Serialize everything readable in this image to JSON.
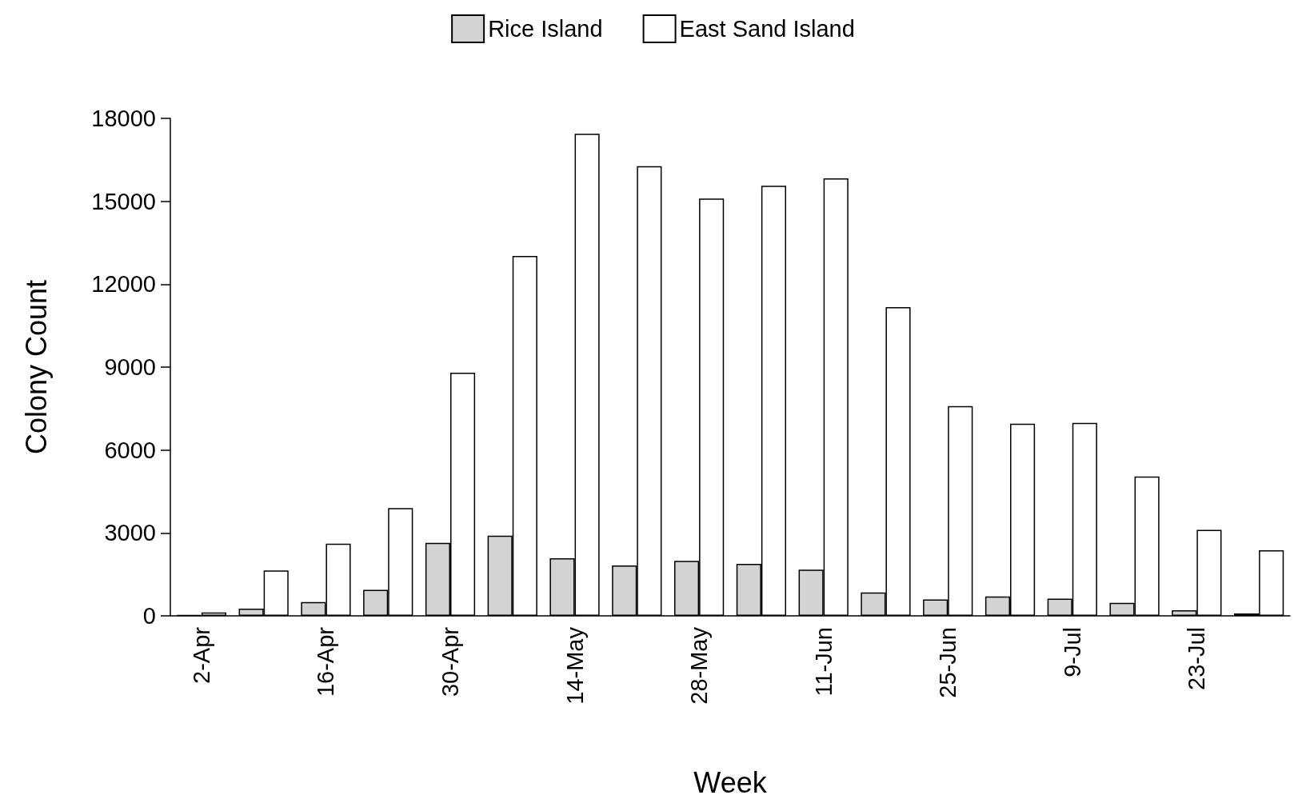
{
  "chart_data": {
    "type": "bar",
    "xlabel": "Week",
    "ylabel": "Colony Count",
    "categories": [
      "2-Apr",
      null,
      "16-Apr",
      null,
      "30-Apr",
      null,
      "14-May",
      null,
      "28-May",
      null,
      "11-Jun",
      null,
      "25-Jun",
      null,
      "9-Jul",
      null,
      "23-Jul",
      null
    ],
    "series": [
      {
        "name": "Rice Island",
        "color": "#d3d3d3",
        "values": [
          30,
          260,
          500,
          940,
          2640,
          2900,
          2080,
          1820,
          1990,
          1880,
          1670,
          850,
          590,
          700,
          620,
          470,
          200,
          90
        ]
      },
      {
        "name": "East Sand Island",
        "color": "#ffffff",
        "values": [
          120,
          1640,
          2610,
          3900,
          8800,
          13020,
          17440,
          16270,
          15100,
          15560,
          15830,
          11170,
          7590,
          6950,
          6980,
          5040,
          3110,
          2370
        ]
      }
    ],
    "ylim": [
      0,
      18000
    ],
    "yticks": [
      0,
      3000,
      6000,
      9000,
      12000,
      15000,
      18000
    ],
    "grid": false,
    "legend": "top"
  }
}
